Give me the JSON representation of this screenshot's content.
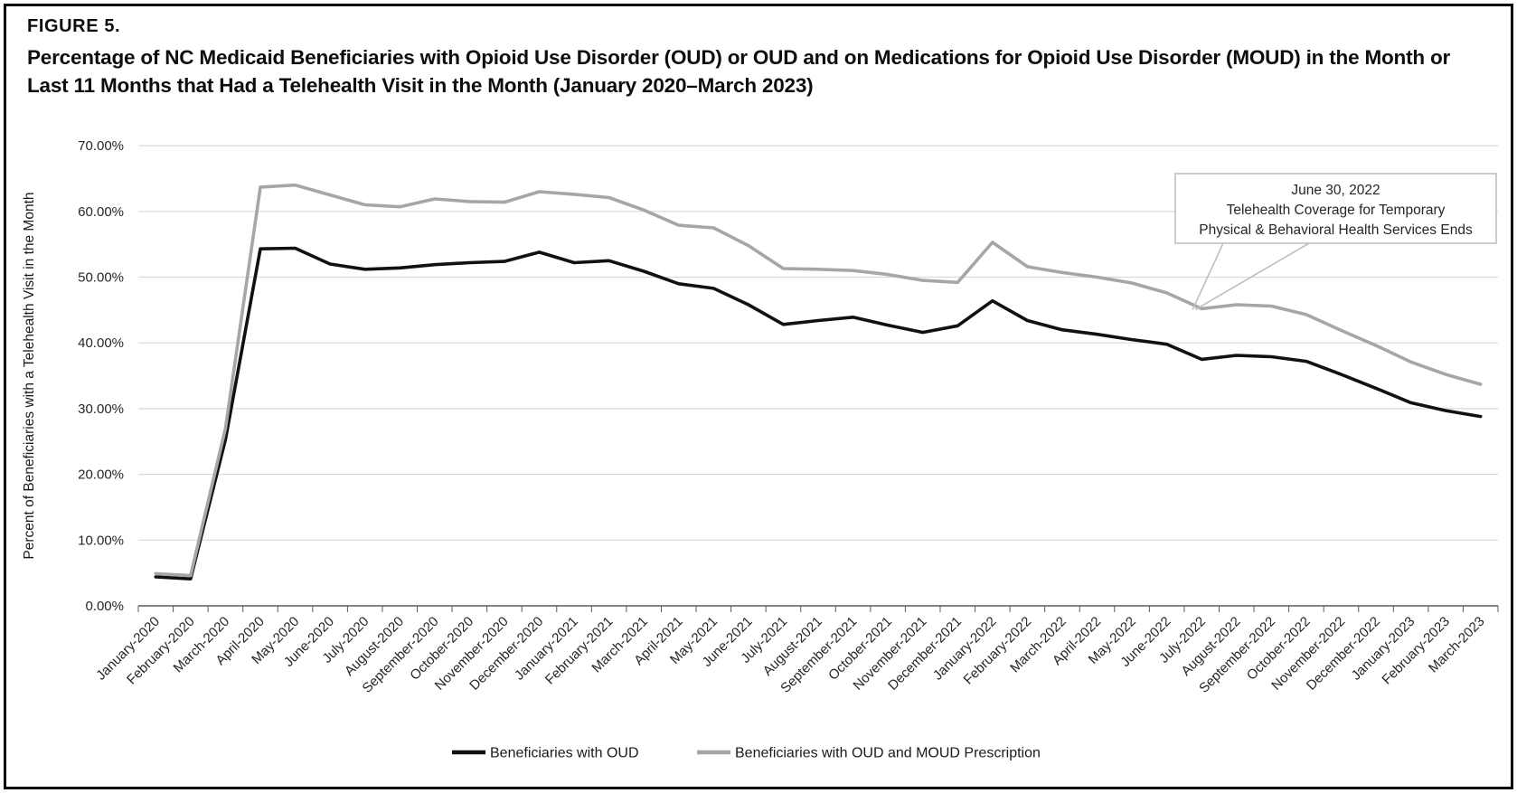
{
  "figure": {
    "label": "FIGURE 5.",
    "title": "Percentage of NC Medicaid Beneficiaries with Opioid Use Disorder (OUD) or OUD and on Medications for Opioid Use Disorder (MOUD) in the Month or Last 11 Months that Had a Telehealth Visit in the Month (January 2020–March 2023)"
  },
  "chart_data": {
    "type": "line",
    "title": "",
    "xlabel": "",
    "ylabel": "Percent of Beneficiaries with a Telehealth Visit in the Month",
    "ylim": [
      0,
      70
    ],
    "grid": true,
    "legend_position": "bottom",
    "y_tick_labels": [
      "0.00%",
      "10.00%",
      "20.00%",
      "30.00%",
      "40.00%",
      "50.00%",
      "60.00%",
      "70.00%"
    ],
    "categories": [
      "January-2020",
      "February-2020",
      "March-2020",
      "April-2020",
      "May-2020",
      "June-2020",
      "July-2020",
      "August-2020",
      "September-2020",
      "October-2020",
      "November-2020",
      "December-2020",
      "January-2021",
      "February-2021",
      "March-2021",
      "April-2021",
      "May-2021",
      "June-2021",
      "July-2021",
      "August-2021",
      "September-2021",
      "October-2021",
      "November-2021",
      "December-2021",
      "January-2022",
      "February-2022",
      "March-2022",
      "April-2022",
      "May-2022",
      "June-2022",
      "July-2022",
      "August-2022",
      "September-2022",
      "October-2022",
      "November-2022",
      "December-2022",
      "January-2023",
      "February-2023",
      "March-2023"
    ],
    "series": [
      {
        "name": "Beneficiaries with OUD",
        "color": "#111111",
        "values": [
          4.4,
          4.1,
          25.3,
          54.3,
          54.4,
          52.0,
          51.2,
          51.4,
          51.9,
          52.2,
          52.4,
          53.8,
          52.2,
          52.5,
          50.9,
          49.0,
          48.3,
          45.8,
          42.8,
          43.4,
          43.9,
          42.7,
          41.6,
          42.6,
          46.4,
          43.4,
          42.0,
          41.3,
          40.5,
          39.8,
          37.5,
          38.1,
          37.9,
          37.2,
          35.2,
          33.1,
          30.9,
          29.7,
          28.8
        ]
      },
      {
        "name": "Beneficiaries with OUD and MOUD Prescription",
        "color": "#a6a6a6",
        "values": [
          4.9,
          4.6,
          27.0,
          63.7,
          64.0,
          62.5,
          61.0,
          60.7,
          61.9,
          61.5,
          61.4,
          63.0,
          62.6,
          62.1,
          60.2,
          57.9,
          57.5,
          54.8,
          51.3,
          51.2,
          51.0,
          50.4,
          49.5,
          49.2,
          55.3,
          51.6,
          50.7,
          50.0,
          49.1,
          47.6,
          45.2,
          45.8,
          45.6,
          44.3,
          41.9,
          39.6,
          37.1,
          35.2,
          33.7
        ]
      }
    ],
    "annotation": {
      "lines": [
        "June 30, 2022",
        "Telehealth Coverage for Temporary",
        "Physical & Behavioral Health Services Ends"
      ],
      "points_to_category": "July-2022",
      "points_to_series": "Beneficiaries with OUD and MOUD Prescription"
    },
    "colors": {
      "gridline": "#d9d9d9",
      "axis": "#595959",
      "tick_text": "#262626",
      "annotation_border": "#bfbfbf"
    }
  }
}
